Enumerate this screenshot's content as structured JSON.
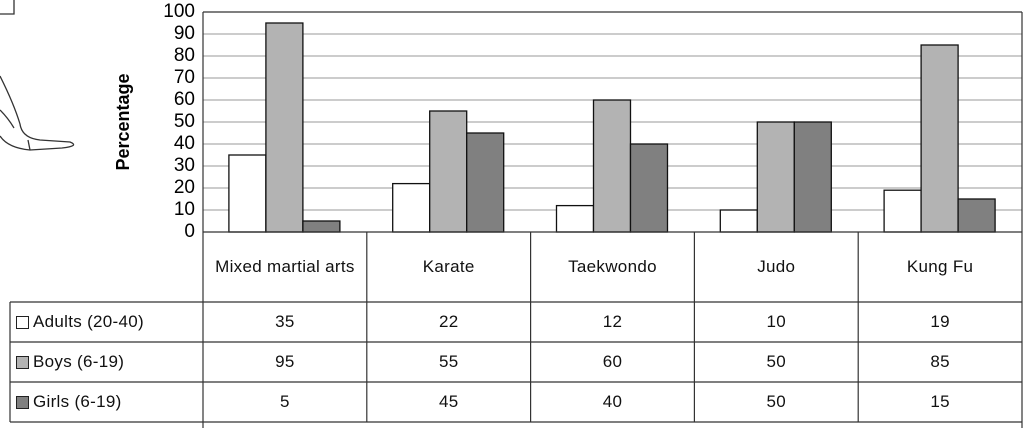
{
  "chart_data": {
    "type": "bar",
    "y_label": "Percentage",
    "categories": [
      "Mixed martial arts",
      "Karate",
      "Taekwondo",
      "Judo",
      "Kung Fu"
    ],
    "series": [
      {
        "name": "Adults (20-40)",
        "color": "#ffffff",
        "values": [
          35,
          22,
          12,
          10,
          19
        ]
      },
      {
        "name": "Boys (6-19)",
        "color": "#b3b3b3",
        "values": [
          95,
          55,
          60,
          50,
          85
        ]
      },
      {
        "name": "Girls (6-19)",
        "color": "#808080",
        "values": [
          5,
          45,
          40,
          50,
          15
        ]
      }
    ],
    "ylim": [
      0,
      100
    ],
    "yticks": [
      0,
      10,
      20,
      30,
      40,
      50,
      60,
      70,
      80,
      90,
      100
    ],
    "grid": true
  }
}
